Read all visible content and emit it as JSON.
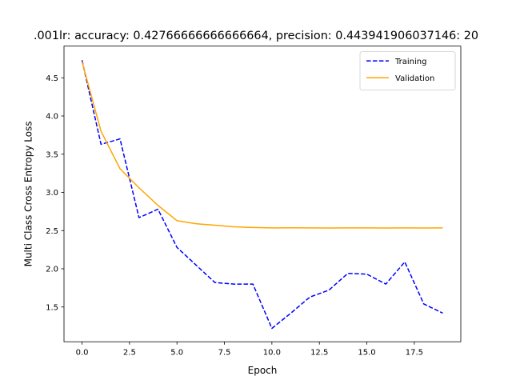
{
  "chart_data": {
    "type": "line",
    "title": ".001lr: accuracy: 0.42766666666666664, precision: 0.443941906037146: 20",
    "xlabel": "Epoch",
    "ylabel": "Multi Class Cross Entropy Loss",
    "xlim": [
      -0.95,
      19.95
    ],
    "ylim": [
      1.045,
      4.915
    ],
    "xticks": [
      0.0,
      2.5,
      5.0,
      7.5,
      10.0,
      12.5,
      15.0,
      17.5
    ],
    "xtick_labels": [
      "0.0",
      "2.5",
      "5.0",
      "7.5",
      "10.0",
      "12.5",
      "15.0",
      "17.5"
    ],
    "yticks": [
      1.5,
      2.0,
      2.5,
      3.0,
      3.5,
      4.0,
      4.5
    ],
    "ytick_labels": [
      "1.5",
      "2.0",
      "2.5",
      "3.0",
      "3.5",
      "4.0",
      "4.5"
    ],
    "grid": false,
    "legend_position": "upper-right",
    "x": [
      0,
      1,
      2,
      3,
      4,
      5,
      6,
      7,
      8,
      9,
      10,
      11,
      12,
      13,
      14,
      15,
      16,
      17,
      18,
      19
    ],
    "series": [
      {
        "name": "Training",
        "color": "#0000ff",
        "style": "dashed",
        "values": [
          4.73,
          3.63,
          3.7,
          2.67,
          2.78,
          2.28,
          2.05,
          1.82,
          1.8,
          1.8,
          1.22,
          1.42,
          1.63,
          1.72,
          1.94,
          1.93,
          1.8,
          2.09,
          1.54,
          1.42
        ]
      },
      {
        "name": "Validation",
        "color": "#ffa500",
        "style": "solid",
        "values": [
          4.71,
          3.8,
          3.31,
          3.06,
          2.83,
          2.63,
          2.59,
          2.57,
          2.55,
          2.54,
          2.535,
          2.537,
          2.535,
          2.534,
          2.535,
          2.535,
          2.534,
          2.535,
          2.534,
          2.535
        ]
      }
    ]
  }
}
